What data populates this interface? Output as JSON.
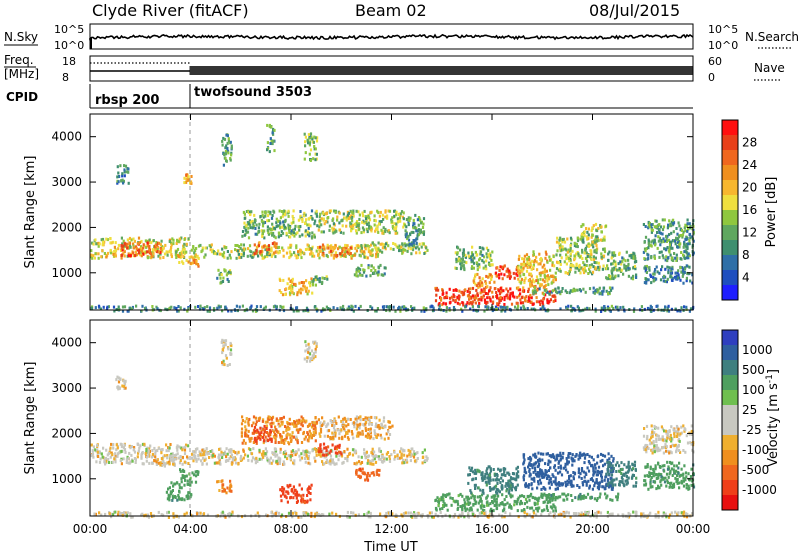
{
  "header": {
    "station": "Clyde River (fitACF)",
    "beam": "Beam 02",
    "date": "08/Jul/2015"
  },
  "panels": {
    "nsky_label": "N.Sky",
    "nsky_ticks": [
      "10^5",
      "10^0"
    ],
    "nsearch_label": "N.Search",
    "nsearch_ticks": [
      "10^5",
      "10^0"
    ],
    "freq_label_1": "Freq.",
    "freq_label_2": "[MHz]",
    "freq_ticks": [
      "18",
      "8"
    ],
    "nave_label": "Nave",
    "nave_ticks": [
      "60",
      "0"
    ],
    "cpid_label": "CPID",
    "cpid_segments": [
      {
        "name": "rbsp 200",
        "start_hour": 0
      },
      {
        "name": "twofsound 3503",
        "start_hour": 4
      }
    ]
  },
  "colorbars": {
    "power": {
      "label": "Power [dB]",
      "ticks": [
        "28",
        "24",
        "20",
        "16",
        "12",
        "8",
        "4"
      ],
      "colors": [
        "#1f1fff",
        "#1f4fbf",
        "#2f6fa7",
        "#3f8f6f",
        "#5fa75f",
        "#8fc73f",
        "#efdf3f",
        "#f7b72f",
        "#ef8f1f",
        "#ef671f",
        "#e8401a",
        "#ff1010"
      ]
    },
    "velocity": {
      "label_main": "Velocity",
      "label_units": "[m s",
      "label_exp": "-1",
      "label_close": "]",
      "ticks": [
        "1000",
        "500",
        "100",
        "25",
        "-25",
        "-100",
        "-500",
        "-1000"
      ],
      "colors": [
        "#2f3fbf",
        "#2f5f9f",
        "#3f7f7f",
        "#4f9f5f",
        "#6fbf4f",
        "#c8c8c0",
        "#c8c8c0",
        "#efaf2f",
        "#ef8f1f",
        "#ef671f",
        "#ef3f1a",
        "#e81010"
      ]
    }
  },
  "axes": {
    "ylabel": "Slant Range [km]",
    "yticks": [
      "4000",
      "3000",
      "2000",
      "1000"
    ],
    "xticks": [
      "00:00",
      "04:00",
      "08:00",
      "12:00",
      "16:00",
      "20:00",
      "00:00"
    ],
    "xlabel": "Time UT"
  },
  "chart_data": [
    {
      "type": "heatmap",
      "title": "",
      "quantity": "Power",
      "ylabel": "Slant Range [km]",
      "xlabel": "",
      "xlim_hours": [
        0,
        24
      ],
      "ylim_km": [
        180,
        4500
      ],
      "clim": [
        0,
        30
      ],
      "clusters": [
        {
          "t": [
            0.0,
            3.9
          ],
          "r": [
            1350,
            1800
          ],
          "v": 16
        },
        {
          "t": [
            1.2,
            2.8
          ],
          "r": [
            1400,
            1700
          ],
          "v": 24
        },
        {
          "t": [
            3.5,
            4.3
          ],
          "r": [
            1150,
            1400
          ],
          "v": 20
        },
        {
          "t": [
            4.0,
            7.5
          ],
          "r": [
            1350,
            1650
          ],
          "v": 14
        },
        {
          "t": [
            6.5,
            7.4
          ],
          "r": [
            1450,
            1700
          ],
          "v": 22
        },
        {
          "t": [
            7.5,
            11.5
          ],
          "r": [
            1350,
            1650
          ],
          "v": 16
        },
        {
          "t": [
            9.0,
            10.5
          ],
          "r": [
            1400,
            1650
          ],
          "v": 22
        },
        {
          "t": [
            11.0,
            13.4
          ],
          "r": [
            1450,
            1700
          ],
          "v": 14
        },
        {
          "t": [
            6.0,
            9.0
          ],
          "r": [
            1800,
            2400
          ],
          "v": 12
        },
        {
          "t": [
            9.0,
            12.5
          ],
          "r": [
            1900,
            2400
          ],
          "v": 14
        },
        {
          "t": [
            12.5,
            13.3
          ],
          "r": [
            1600,
            2300
          ],
          "v": 10
        },
        {
          "t": [
            7.5,
            8.8
          ],
          "r": [
            550,
            900
          ],
          "v": 18
        },
        {
          "t": [
            5.0,
            5.6
          ],
          "r": [
            800,
            1100
          ],
          "v": 12
        },
        {
          "t": [
            8.8,
            9.4
          ],
          "r": [
            750,
            950
          ],
          "v": 12
        },
        {
          "t": [
            10.5,
            11.8
          ],
          "r": [
            950,
            1200
          ],
          "v": 10
        },
        {
          "t": [
            1.0,
            1.5
          ],
          "r": [
            3000,
            3400
          ],
          "v": 8
        },
        {
          "t": [
            3.7,
            4.0
          ],
          "r": [
            3000,
            3200
          ],
          "v": 20
        },
        {
          "t": [
            5.2,
            5.6
          ],
          "r": [
            3400,
            4100
          ],
          "v": 10
        },
        {
          "t": [
            7.0,
            7.3
          ],
          "r": [
            3700,
            4300
          ],
          "v": 10
        },
        {
          "t": [
            8.5,
            9.0
          ],
          "r": [
            3500,
            4100
          ],
          "v": 12
        },
        {
          "t": [
            13.7,
            18.5
          ],
          "r": [
            320,
            700
          ],
          "v": 26
        },
        {
          "t": [
            16.0,
            17.0
          ],
          "r": [
            900,
            1200
          ],
          "v": 26
        },
        {
          "t": [
            15.2,
            16.2
          ],
          "r": [
            700,
            1000
          ],
          "v": 20
        },
        {
          "t": [
            17.0,
            18.5
          ],
          "r": [
            700,
            1500
          ],
          "v": 18
        },
        {
          "t": [
            18.5,
            20.5
          ],
          "r": [
            1000,
            1800
          ],
          "v": 14
        },
        {
          "t": [
            20.5,
            21.7
          ],
          "r": [
            900,
            1500
          ],
          "v": 12
        },
        {
          "t": [
            17.5,
            21.0
          ],
          "r": [
            550,
            700
          ],
          "v": 10
        },
        {
          "t": [
            19.5,
            20.5
          ],
          "r": [
            1700,
            2100
          ],
          "v": 14
        },
        {
          "t": [
            22.0,
            24.0
          ],
          "r": [
            1300,
            2200
          ],
          "v": 10
        },
        {
          "t": [
            22.0,
            24.0
          ],
          "r": [
            800,
            1200
          ],
          "v": 8
        },
        {
          "t": [
            14.5,
            16.0
          ],
          "r": [
            1100,
            1600
          ],
          "v": 12
        },
        {
          "t": [
            0.0,
            24.0
          ],
          "r": [
            180,
            300
          ],
          "v": 8
        }
      ]
    },
    {
      "type": "heatmap",
      "title": "",
      "quantity": "Velocity",
      "ylabel": "Slant Range [km]",
      "xlabel": "Time UT",
      "xlim_hours": [
        0,
        24
      ],
      "ylim_km": [
        180,
        4500
      ],
      "clim": [
        -1000,
        1000
      ],
      "clusters": [
        {
          "t": [
            0.0,
            3.9
          ],
          "r": [
            1350,
            1800
          ],
          "v": 0
        },
        {
          "t": [
            2.5,
            3.5
          ],
          "r": [
            1300,
            1500
          ],
          "v": -30
        },
        {
          "t": [
            4.0,
            13.4
          ],
          "r": [
            1350,
            1700
          ],
          "v": 0
        },
        {
          "t": [
            6.0,
            9.0
          ],
          "r": [
            1800,
            2400
          ],
          "v": -80
        },
        {
          "t": [
            9.0,
            12.0
          ],
          "r": [
            1900,
            2400
          ],
          "v": -40
        },
        {
          "t": [
            6.5,
            7.2
          ],
          "r": [
            1850,
            2200
          ],
          "v": -300
        },
        {
          "t": [
            9.0,
            10.0
          ],
          "r": [
            1550,
            1800
          ],
          "v": -300
        },
        {
          "t": [
            7.5,
            8.8
          ],
          "r": [
            500,
            900
          ],
          "v": -300
        },
        {
          "t": [
            3.5,
            4.3
          ],
          "r": [
            950,
            1250
          ],
          "v": 150
        },
        {
          "t": [
            3.0,
            4.0
          ],
          "r": [
            550,
            950
          ],
          "v": 200
        },
        {
          "t": [
            5.0,
            5.6
          ],
          "r": [
            700,
            1000
          ],
          "v": -100
        },
        {
          "t": [
            10.5,
            11.5
          ],
          "r": [
            1000,
            1250
          ],
          "v": -200
        },
        {
          "t": [
            1.0,
            1.4
          ],
          "r": [
            3000,
            3300
          ],
          "v": 0
        },
        {
          "t": [
            5.2,
            5.6
          ],
          "r": [
            3500,
            4100
          ],
          "v": 0
        },
        {
          "t": [
            8.5,
            9.0
          ],
          "r": [
            3600,
            4100
          ],
          "v": 0
        },
        {
          "t": [
            13.7,
            18.5
          ],
          "r": [
            320,
            700
          ],
          "v": 150
        },
        {
          "t": [
            17.2,
            20.8
          ],
          "r": [
            800,
            1600
          ],
          "v": 900
        },
        {
          "t": [
            15.0,
            17.0
          ],
          "r": [
            700,
            1300
          ],
          "v": 300
        },
        {
          "t": [
            17.5,
            21.0
          ],
          "r": [
            550,
            700
          ],
          "v": 200
        },
        {
          "t": [
            20.5,
            21.7
          ],
          "r": [
            850,
            1400
          ],
          "v": 300
        },
        {
          "t": [
            22.0,
            24.0
          ],
          "r": [
            800,
            1400
          ],
          "v": 200
        },
        {
          "t": [
            22.0,
            24.0
          ],
          "r": [
            1600,
            2200
          ],
          "v": 0
        },
        {
          "t": [
            0.0,
            24.0
          ],
          "r": [
            180,
            300
          ],
          "v": 0
        }
      ]
    }
  ]
}
